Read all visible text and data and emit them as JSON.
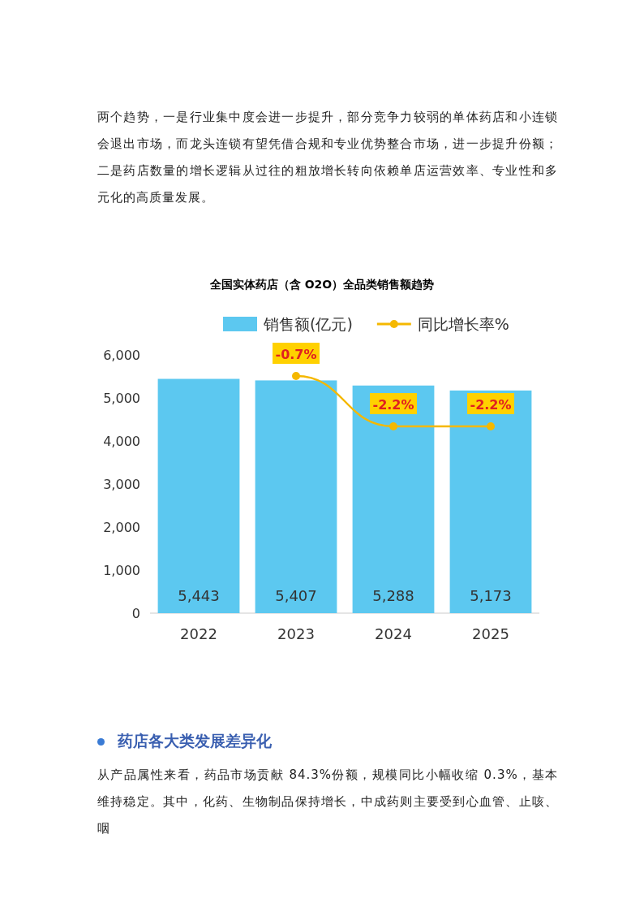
{
  "chart_data": {
    "type": "bar",
    "title": "全国实体药店（含 O2O）全品类销售额趋势",
    "categories": [
      "2022",
      "2023",
      "2024",
      "2025"
    ],
    "series": [
      {
        "name": "销售额(亿元)",
        "color": "#5cc8f0",
        "values": [
          5443,
          5407,
          5288,
          5173
        ],
        "value_labels": [
          "5,443",
          "5,407",
          "5,288",
          "5,173"
        ]
      },
      {
        "name": "同比增长率%",
        "type": "line",
        "axis": "y2",
        "color": "#f5b800",
        "marker": "circle",
        "values": [
          null,
          -0.7,
          -2.2,
          -2.2
        ],
        "value_labels": [
          null,
          "-0.7%",
          "-2.2%",
          "-2.2%"
        ]
      }
    ],
    "ylim": [
      0,
      6000
    ],
    "yticks": [
      {
        "value": 0,
        "label": "0"
      },
      {
        "value": 1000,
        "label": "1,000"
      },
      {
        "value": 2000,
        "label": "2,000"
      },
      {
        "value": 3000,
        "label": "3,000"
      },
      {
        "value": 4000,
        "label": "4,000"
      },
      {
        "value": 5000,
        "label": "5,000"
      },
      {
        "value": 6000,
        "label": "6,000"
      }
    ],
    "grid": false,
    "legend": "top",
    "annotations": [
      "两个趋势，一是行业集中度会进一步提升，部分竞争力较弱的单体药店和小连锁会退出市场，而龙头连锁有望凭借合规和专业优势整合市场，进一步提升份额；二是药店数量的增长逻辑从过往的粗放增长转向依赖单店运营效率、专业性和多元化的高质量发展。",
      "药店各大类发展差异化",
      "从产品属性来看，药品市场贡献 84.3%份额，规模同比小幅收缩 0.3%，基本维持稳定。其中，化药、生物制品保持增长，中成药则主要受到心血管、止咳、咽"
    ]
  }
}
